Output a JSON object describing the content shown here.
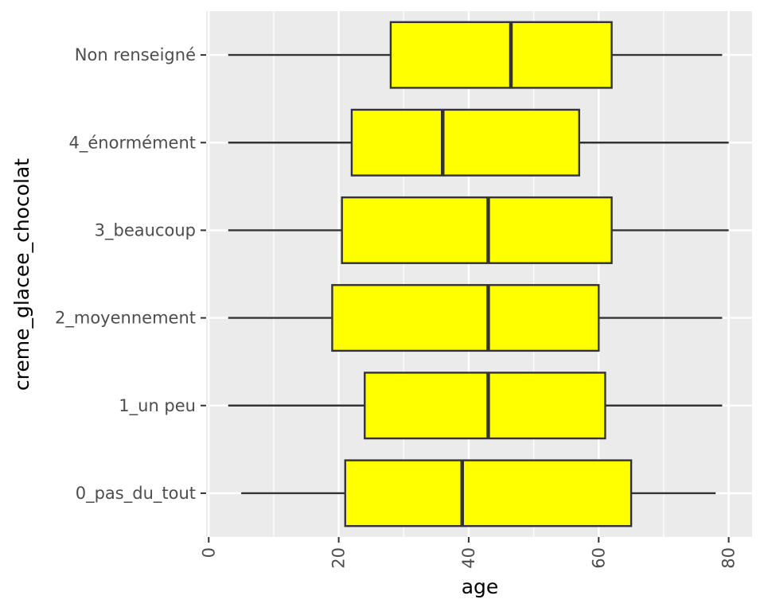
{
  "chart_data": {
    "type": "boxplot",
    "orientation": "horizontal",
    "xlabel": "age",
    "ylabel": "creme_glacee_chocolat",
    "xlim": [
      -0.4,
      83.6
    ],
    "x_ticks": [
      0,
      20,
      40,
      60,
      80
    ],
    "x_tick_labels": [
      "0",
      "20",
      "40",
      "60",
      "80"
    ],
    "grid": true,
    "legend": "none",
    "box_fill": "#ffff00",
    "box_stroke": "#333333",
    "panel_background": "#ebebeb",
    "grid_color": "#ffffff",
    "categories": [
      "Non renseigné",
      "4_énormément",
      "3_beaucoup",
      "2_moyennement",
      "1_un peu",
      "0_pas_du_tout"
    ],
    "boxes": [
      {
        "category": "Non renseigné",
        "whisker_low": 3,
        "q1": 28,
        "median": 46.5,
        "q3": 62,
        "whisker_high": 79
      },
      {
        "category": "4_énormément",
        "whisker_low": 3,
        "q1": 22,
        "median": 36,
        "q3": 57,
        "whisker_high": 80
      },
      {
        "category": "3_beaucoup",
        "whisker_low": 3,
        "q1": 20.5,
        "median": 43,
        "q3": 62,
        "whisker_high": 80
      },
      {
        "category": "2_moyennement",
        "whisker_low": 3,
        "q1": 19,
        "median": 43,
        "q3": 60,
        "whisker_high": 79
      },
      {
        "category": "1_un peu",
        "whisker_low": 3,
        "q1": 24,
        "median": 43,
        "q3": 61,
        "whisker_high": 79
      },
      {
        "category": "0_pas_du_tout",
        "whisker_low": 5,
        "q1": 21,
        "median": 39,
        "q3": 65,
        "whisker_high": 78
      }
    ]
  }
}
